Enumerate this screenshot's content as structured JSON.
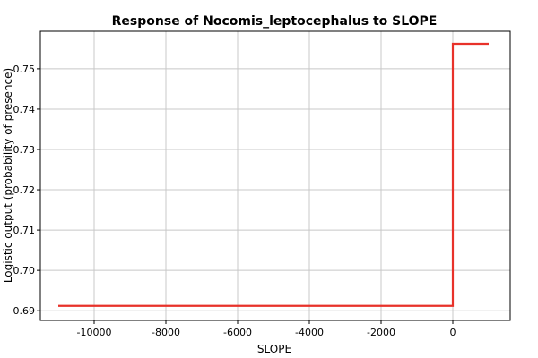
{
  "chart_data": {
    "type": "line",
    "title": "Response of Nocomis_leptocephalus to SLOPE",
    "xlabel": "SLOPE",
    "ylabel": "Logistic output (probability of presence)",
    "xlim": [
      -11500,
      1600
    ],
    "ylim": [
      0.6876,
      0.7593
    ],
    "x_ticks": [
      -10000,
      -8000,
      -6000,
      -4000,
      -2000,
      0
    ],
    "x_tick_labels": [
      "-10000",
      "-8000",
      "-6000",
      "-4000",
      "-2000",
      "0"
    ],
    "y_ticks": [
      0.69,
      0.7,
      0.71,
      0.72,
      0.73,
      0.74,
      0.75
    ],
    "y_tick_labels": [
      "0.69",
      "0.70",
      "0.71",
      "0.72",
      "0.73",
      "0.74",
      "0.75"
    ],
    "grid": true,
    "series": [
      {
        "color": "#e8322a",
        "x": [
          -11000,
          0,
          0,
          1000
        ],
        "y": [
          0.6912,
          0.6912,
          0.7562,
          0.7562
        ]
      }
    ]
  }
}
